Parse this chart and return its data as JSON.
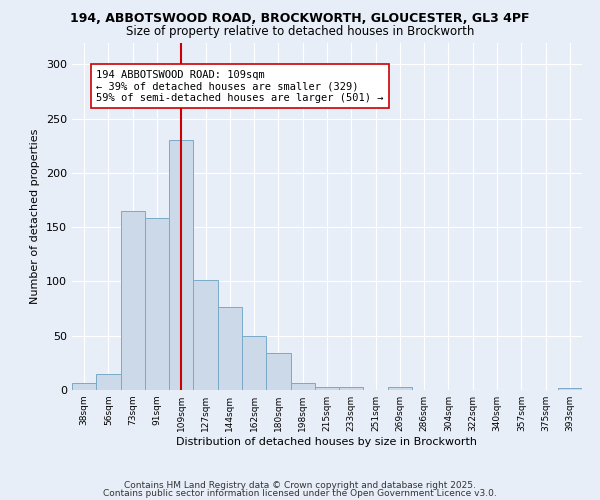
{
  "title_line1": "194, ABBOTSWOOD ROAD, BROCKWORTH, GLOUCESTER, GL3 4PF",
  "title_line2": "Size of property relative to detached houses in Brockworth",
  "xlabel": "Distribution of detached houses by size in Brockworth",
  "ylabel": "Number of detached properties",
  "categories": [
    "38sqm",
    "56sqm",
    "73sqm",
    "91sqm",
    "109sqm",
    "127sqm",
    "144sqm",
    "162sqm",
    "180sqm",
    "198sqm",
    "215sqm",
    "233sqm",
    "251sqm",
    "269sqm",
    "286sqm",
    "304sqm",
    "322sqm",
    "340sqm",
    "357sqm",
    "375sqm",
    "393sqm"
  ],
  "values": [
    6,
    15,
    165,
    158,
    230,
    101,
    76,
    50,
    34,
    6,
    3,
    3,
    0,
    3,
    0,
    0,
    0,
    0,
    0,
    0,
    2
  ],
  "bar_color": "#ccd9e8",
  "bar_edge_color": "#7aaac8",
  "vline_x": 4,
  "vline_color": "#cc0000",
  "annotation_text": "194 ABBOTSWOOD ROAD: 109sqm\n← 39% of detached houses are smaller (329)\n59% of semi-detached houses are larger (501) →",
  "annotation_box_color": "#ffffff",
  "annotation_box_edge_color": "#cc0000",
  "annotation_fontsize": 7.5,
  "ylim": [
    0,
    320
  ],
  "yticks": [
    0,
    50,
    100,
    150,
    200,
    250,
    300
  ],
  "background_color": "#e8eef8",
  "grid_color": "#ffffff",
  "footer_line1": "Contains HM Land Registry data © Crown copyright and database right 2025.",
  "footer_line2": "Contains public sector information licensed under the Open Government Licence v3.0.",
  "footer_fontsize": 6.5,
  "title1_fontsize": 9,
  "title2_fontsize": 8.5,
  "xlabel_fontsize": 8,
  "ylabel_fontsize": 8
}
